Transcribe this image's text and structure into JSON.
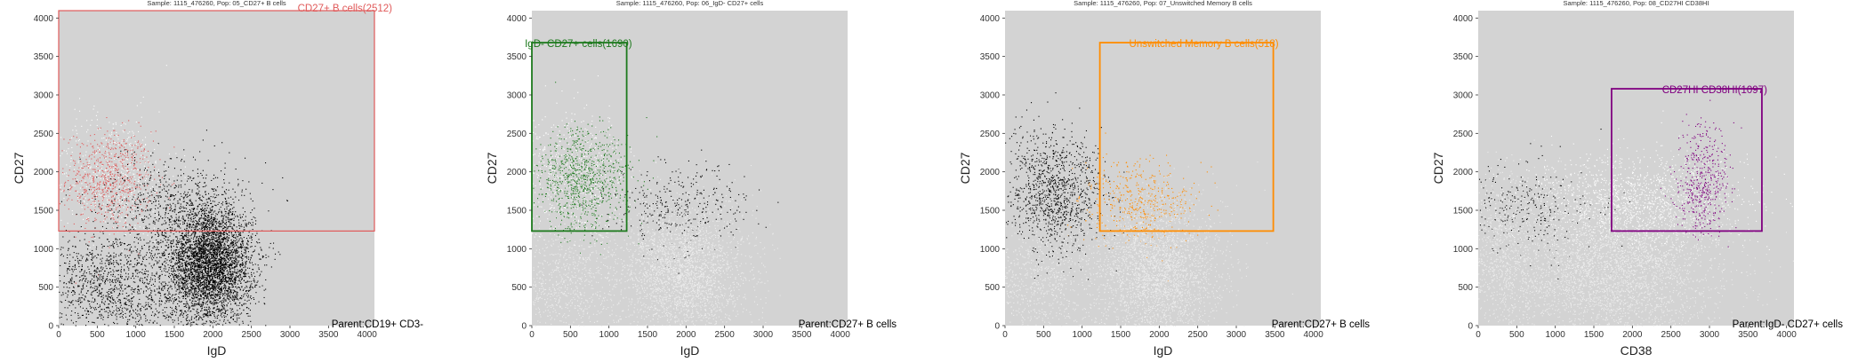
{
  "chart_data": [
    {
      "type": "scatter",
      "title": "Sample: 1115_476260, Pop: 05_CD27+ B cells",
      "xlabel": "IgD",
      "ylabel": "CD27",
      "xlim": [
        0,
        4096
      ],
      "ylim": [
        0,
        4096
      ],
      "xticks": [
        0,
        500,
        1000,
        1500,
        2000,
        2500,
        3000,
        3500,
        4000
      ],
      "yticks": [
        0,
        500,
        1000,
        1500,
        2000,
        2500,
        3000,
        3500,
        4000
      ],
      "gate": {
        "label": "CD27+ B cells(2512)",
        "color": "#e05a5a",
        "x": [
          0,
          4096
        ],
        "y": [
          1230,
          4096
        ]
      },
      "parent_label": "Parent:CD19+ CD3-",
      "clusters": [
        {
          "cx": 650,
          "cy": 1900,
          "sx": 280,
          "sy": 320,
          "n": 700,
          "color": "#e05a5a"
        },
        {
          "cx": 700,
          "cy": 1950,
          "sx": 420,
          "sy": 420,
          "n": 500,
          "color": "#ffffff"
        },
        {
          "cx": 1950,
          "cy": 800,
          "sx": 280,
          "sy": 380,
          "n": 4200,
          "color": "#000000"
        },
        {
          "cx": 700,
          "cy": 500,
          "sx": 500,
          "sy": 380,
          "n": 1400,
          "color": "#000000"
        },
        {
          "cx": 1500,
          "cy": 1600,
          "sx": 450,
          "sy": 300,
          "n": 600,
          "color": "#000000"
        }
      ]
    },
    {
      "type": "scatter",
      "title": "Sample: 1115_476260, Pop: 06_IgD- CD27+ cells",
      "xlabel": "IgD",
      "ylabel": "CD27",
      "xlim": [
        0,
        4096
      ],
      "ylim": [
        0,
        4096
      ],
      "xticks": [
        0,
        500,
        1000,
        1500,
        2000,
        2500,
        3000,
        3500,
        4000
      ],
      "yticks": [
        0,
        500,
        1000,
        1500,
        2000,
        2500,
        3000,
        3500,
        4000
      ],
      "gate": {
        "label": "IgD- CD27+ cells(1690)",
        "color": "#1e7a1e",
        "x": [
          0,
          1230
        ],
        "y": [
          1230,
          3680
        ]
      },
      "parent_label": "Parent:CD27+ B cells",
      "clusters": [
        {
          "cx": 650,
          "cy": 1900,
          "sx": 300,
          "sy": 330,
          "n": 900,
          "color": "#1e7a1e"
        },
        {
          "cx": 550,
          "cy": 1950,
          "sx": 380,
          "sy": 400,
          "n": 600,
          "color": "#ffffff"
        },
        {
          "cx": 1900,
          "cy": 1550,
          "sx": 450,
          "sy": 280,
          "n": 350,
          "color": "#000000"
        },
        {
          "cx": 1950,
          "cy": 700,
          "sx": 420,
          "sy": 450,
          "n": 3000,
          "color": "#ececec"
        },
        {
          "cx": 400,
          "cy": 500,
          "sx": 350,
          "sy": 400,
          "n": 800,
          "color": "#ececec"
        }
      ]
    },
    {
      "type": "scatter",
      "title": "Sample: 1115_476260, Pop: 07_Unswitched Memory B cells",
      "xlabel": "IgD",
      "ylabel": "CD27",
      "xlim": [
        0,
        4096
      ],
      "ylim": [
        0,
        4096
      ],
      "xticks": [
        0,
        500,
        1000,
        1500,
        2000,
        2500,
        3000,
        3500,
        4000
      ],
      "yticks": [
        0,
        500,
        1000,
        1500,
        2000,
        2500,
        3000,
        3500,
        4000
      ],
      "gate": {
        "label": "Unswitched Memory B cells(518)",
        "color": "#ff8c00",
        "x": [
          1230,
          3480
        ],
        "y": [
          1230,
          3680
        ]
      },
      "parent_label": "Parent:CD27+ B cells",
      "clusters": [
        {
          "cx": 650,
          "cy": 1750,
          "sx": 320,
          "sy": 380,
          "n": 1100,
          "color": "#000000"
        },
        {
          "cx": 1750,
          "cy": 1600,
          "sx": 350,
          "sy": 280,
          "n": 450,
          "color": "#ff8c00"
        },
        {
          "cx": 1950,
          "cy": 700,
          "sx": 420,
          "sy": 450,
          "n": 3000,
          "color": "#ececec"
        },
        {
          "cx": 400,
          "cy": 500,
          "sx": 350,
          "sy": 400,
          "n": 800,
          "color": "#ececec"
        }
      ]
    },
    {
      "type": "scatter",
      "title": "Sample: 1115_476260, Pop: 08_CD27HI CD38HI",
      "xlabel": "CD38",
      "ylabel": "CD27",
      "xlim": [
        0,
        4096
      ],
      "ylim": [
        0,
        4096
      ],
      "xticks": [
        0,
        500,
        1000,
        1500,
        2000,
        2500,
        3000,
        3500,
        4000
      ],
      "yticks": [
        0,
        500,
        1000,
        1500,
        2000,
        2500,
        3000,
        3500,
        4000
      ],
      "gate": {
        "label": "CD27HI CD38HI(1097)",
        "color": "#800080",
        "x": [
          1730,
          3680
        ],
        "y": [
          1230,
          3080
        ]
      },
      "parent_label": "Parent:IgD- CD27+ cells",
      "clusters": [
        {
          "cx": 2000,
          "cy": 1600,
          "sx": 700,
          "sy": 320,
          "n": 1600,
          "color": "#ffffff"
        },
        {
          "cx": 2900,
          "cy": 1900,
          "sx": 180,
          "sy": 350,
          "n": 450,
          "color": "#800080"
        },
        {
          "cx": 600,
          "cy": 1550,
          "sx": 500,
          "sy": 300,
          "n": 300,
          "color": "#000000"
        },
        {
          "cx": 1700,
          "cy": 700,
          "sx": 700,
          "sy": 450,
          "n": 3500,
          "color": "#ececec"
        },
        {
          "cx": 300,
          "cy": 900,
          "sx": 250,
          "sy": 500,
          "n": 800,
          "color": "#ececec"
        }
      ]
    }
  ]
}
